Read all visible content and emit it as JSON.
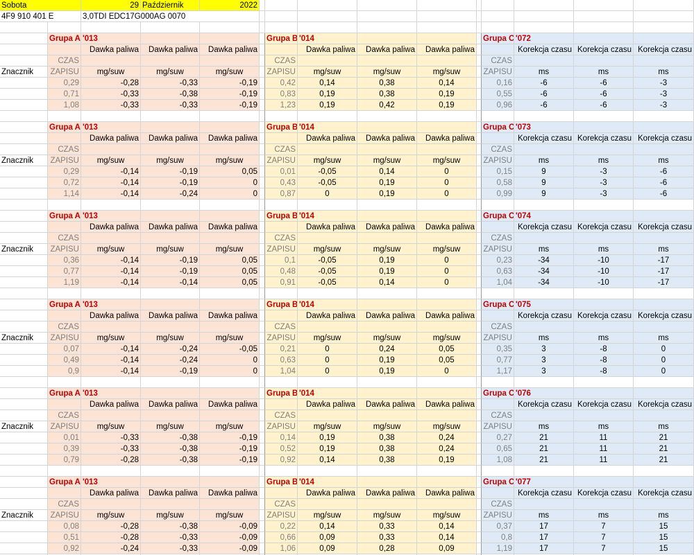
{
  "header": {
    "row1": [
      "Sobota",
      "29",
      "Październik",
      "2022"
    ],
    "row2": [
      "4F9 910 401 E",
      "3,0TDI EDC17G000AG  0070"
    ]
  },
  "labels": {
    "marker": "Znacznik",
    "time1": "CZAS",
    "time2": "ZAPISU",
    "dose": "Dawka paliwa",
    "dose_unit": "mg/suw",
    "corr": "Korekcja czasu",
    "corr_unit": "ms"
  },
  "colors": {
    "groupA": "#fbe3d6",
    "groupB": "#fff2cc",
    "groupC": "#deebf7",
    "group_title": "#c00000",
    "title_bar": "#ffff00"
  },
  "blocks": [
    {
      "a_title": "Grupa A:",
      "a_code": "'013",
      "b_title": "Grupa B:",
      "b_code": "'014",
      "c_title": "Grupa C:",
      "c_code": "'072",
      "rows": [
        {
          "a": [
            "0,29",
            "-0,28",
            "-0,33",
            "-0,19"
          ],
          "b": [
            "0,42",
            "0,14",
            "0,38",
            "0,14"
          ],
          "c": [
            "0,16",
            "-6",
            "-6",
            "-3"
          ]
        },
        {
          "a": [
            "0,71",
            "-0,33",
            "-0,38",
            "-0,19"
          ],
          "b": [
            "0,83",
            "0,19",
            "0,38",
            "0,19"
          ],
          "c": [
            "0,55",
            "-6",
            "-6",
            "-3"
          ]
        },
        {
          "a": [
            "1,08",
            "-0,33",
            "-0,33",
            "-0,19"
          ],
          "b": [
            "1,23",
            "0,19",
            "0,42",
            "0,19"
          ],
          "c": [
            "0,96",
            "-6",
            "-6",
            "-3"
          ]
        }
      ]
    },
    {
      "a_title": "Grupa A:",
      "a_code": "'013",
      "b_title": "Grupa B:",
      "b_code": "'014",
      "c_title": "Grupa C:",
      "c_code": "'073",
      "rows": [
        {
          "a": [
            "0,29",
            "-0,14",
            "-0,19",
            "0,05"
          ],
          "b": [
            "0,01",
            "-0,05",
            "0,14",
            "0"
          ],
          "c": [
            "0,15",
            "9",
            "-3",
            "-6"
          ]
        },
        {
          "a": [
            "0,72",
            "-0,14",
            "-0,19",
            "0"
          ],
          "b": [
            "0,43",
            "-0,05",
            "0,19",
            "0"
          ],
          "c": [
            "0,58",
            "9",
            "-3",
            "-6"
          ]
        },
        {
          "a": [
            "1,14",
            "-0,14",
            "-0,24",
            "0"
          ],
          "b": [
            "0,87",
            "0",
            "0,19",
            "0"
          ],
          "c": [
            "0,99",
            "9",
            "-3",
            "-6"
          ]
        }
      ]
    },
    {
      "a_title": "Grupa A:",
      "a_code": "'013",
      "b_title": "Grupa B:",
      "b_code": "'014",
      "c_title": "Grupa C:",
      "c_code": "'074",
      "rows": [
        {
          "a": [
            "0,36",
            "-0,14",
            "-0,19",
            "0,05"
          ],
          "b": [
            "0,1",
            "-0,05",
            "0,19",
            "0"
          ],
          "c": [
            "0,23",
            "-34",
            "-10",
            "-17"
          ]
        },
        {
          "a": [
            "0,77",
            "-0,14",
            "-0,19",
            "0,05"
          ],
          "b": [
            "0,48",
            "-0,05",
            "0,19",
            "0"
          ],
          "c": [
            "0,63",
            "-34",
            "-10",
            "-17"
          ]
        },
        {
          "a": [
            "1,19",
            "-0,14",
            "-0,14",
            "0,05"
          ],
          "b": [
            "0,91",
            "-0,05",
            "0,14",
            "0"
          ],
          "c": [
            "1,04",
            "-34",
            "-10",
            "-17"
          ]
        }
      ]
    },
    {
      "a_title": "Grupa A:",
      "a_code": "'013",
      "b_title": "Grupa B:",
      "b_code": "'014",
      "c_title": "Grupa C:",
      "c_code": "'075",
      "rows": [
        {
          "a": [
            "0,07",
            "-0,14",
            "-0,24",
            "-0,05"
          ],
          "b": [
            "0,21",
            "0",
            "0,24",
            "0,05"
          ],
          "c": [
            "0,35",
            "3",
            "-8",
            "0"
          ]
        },
        {
          "a": [
            "0,49",
            "-0,14",
            "-0,24",
            "0"
          ],
          "b": [
            "0,63",
            "0",
            "0,19",
            "0,05"
          ],
          "c": [
            "0,77",
            "3",
            "-8",
            "0"
          ]
        },
        {
          "a": [
            "0,9",
            "-0,14",
            "-0,19",
            "0"
          ],
          "b": [
            "1,04",
            "0",
            "0,19",
            "0"
          ],
          "c": [
            "1,17",
            "3",
            "-8",
            "0"
          ]
        }
      ]
    },
    {
      "a_title": "Grupa A:",
      "a_code": "'013",
      "b_title": "Grupa B:",
      "b_code": "'014",
      "c_title": "Grupa C:",
      "c_code": "'076",
      "rows": [
        {
          "a": [
            "0,01",
            "-0,33",
            "-0,38",
            "-0,19"
          ],
          "b": [
            "0,14",
            "0,19",
            "0,38",
            "0,24"
          ],
          "c": [
            "0,27",
            "21",
            "11",
            "21"
          ]
        },
        {
          "a": [
            "0,39",
            "-0,33",
            "-0,38",
            "-0,19"
          ],
          "b": [
            "0,52",
            "0,19",
            "0,38",
            "0,24"
          ],
          "c": [
            "0,65",
            "21",
            "11",
            "21"
          ]
        },
        {
          "a": [
            "0,79",
            "-0,28",
            "-0,38",
            "-0,19"
          ],
          "b": [
            "0,92",
            "0,14",
            "0,38",
            "0,19"
          ],
          "c": [
            "1,08",
            "21",
            "11",
            "21"
          ]
        }
      ]
    },
    {
      "a_title": "Grupa A:",
      "a_code": "'013",
      "b_title": "Grupa B:",
      "b_code": "'014",
      "c_title": "Grupa C:",
      "c_code": "'077",
      "rows": [
        {
          "a": [
            "0,08",
            "-0,28",
            "-0,38",
            "-0,09"
          ],
          "b": [
            "0,22",
            "0,14",
            "0,33",
            "0,14"
          ],
          "c": [
            "0,37",
            "17",
            "7",
            "15"
          ]
        },
        {
          "a": [
            "0,51",
            "-0,28",
            "-0,33",
            "-0,09"
          ],
          "b": [
            "0,66",
            "0,09",
            "0,33",
            "0,14"
          ],
          "c": [
            "0,8",
            "17",
            "7",
            "15"
          ]
        },
        {
          "a": [
            "0,92",
            "-0,24",
            "-0,33",
            "-0,09"
          ],
          "b": [
            "1,06",
            "0,09",
            "0,28",
            "0,09"
          ],
          "c": [
            "1,19",
            "17",
            "7",
            "15"
          ]
        }
      ]
    }
  ]
}
